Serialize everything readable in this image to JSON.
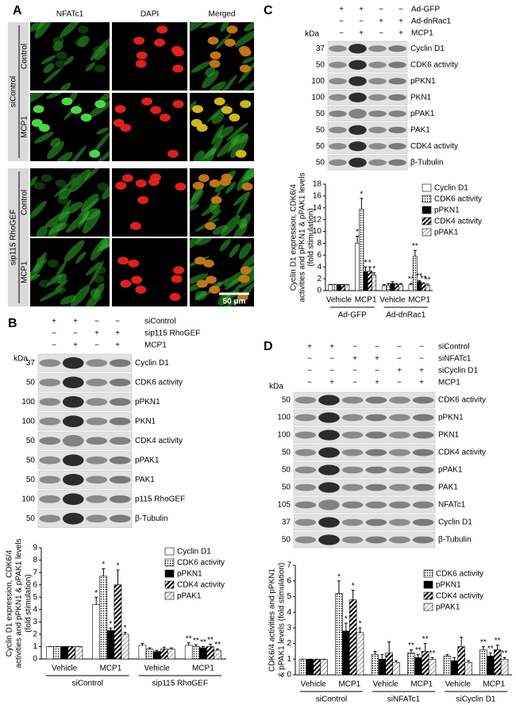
{
  "panels": {
    "A": {
      "label": "A",
      "columns": [
        "NFATc1",
        "DAPI",
        "Merged"
      ],
      "groups": [
        {
          "name": "siControl",
          "rows": [
            "Control",
            "MCP1"
          ]
        },
        {
          "name": "sip115 RhoGEF",
          "rows": [
            "Control",
            "MCP1"
          ]
        }
      ],
      "scale_bar": "50 μm"
    },
    "B": {
      "label": "B",
      "unit": "kDa",
      "conditions": [
        {
          "name": "siControl",
          "signs": [
            "+",
            "+",
            "−",
            "−"
          ]
        },
        {
          "name": "sip115 RhoGEF",
          "signs": [
            "−",
            "−",
            "+",
            "+"
          ]
        },
        {
          "name": "MCP1",
          "signs": [
            "−",
            "+",
            "−",
            "+"
          ]
        }
      ],
      "blots": [
        {
          "marker": "37",
          "name": "Cyclin D1"
        },
        {
          "marker": "50",
          "name": "CDK6 activity"
        },
        {
          "marker": "100",
          "name": "pPKN1"
        },
        {
          "marker": "100",
          "name": "PKN1"
        },
        {
          "marker": "50",
          "name": "CDK4 activity"
        },
        {
          "marker": "50",
          "name": "pPAK1"
        },
        {
          "marker": "50",
          "name": "PAK1"
        },
        {
          "marker": "100",
          "name": "p115 RhoGEF"
        },
        {
          "marker": "50",
          "name": "β-Tubulin"
        }
      ]
    },
    "C": {
      "label": "C",
      "unit": "kDa",
      "conditions": [
        {
          "name": "Ad-GFP",
          "signs": [
            "+",
            "+",
            "−",
            "−"
          ]
        },
        {
          "name": "Ad-dnRac1",
          "signs": [
            "−",
            "−",
            "+",
            "+"
          ]
        },
        {
          "name": "MCP1",
          "signs": [
            "−",
            "+",
            "−",
            "+"
          ]
        }
      ],
      "blots": [
        {
          "marker": "37",
          "name": "Cyclin D1"
        },
        {
          "marker": "50",
          "name": "CDK6 activity"
        },
        {
          "marker": "100",
          "name": "pPKN1"
        },
        {
          "marker": "100",
          "name": "PKN1"
        },
        {
          "marker": "50",
          "name": "pPAK1"
        },
        {
          "marker": "50",
          "name": "PAK1"
        },
        {
          "marker": "50",
          "name": "CDK4 activity"
        },
        {
          "marker": "50",
          "name": "β-Tubulin"
        }
      ]
    },
    "D": {
      "label": "D",
      "unit": "kDa",
      "conditions": [
        {
          "name": "siControl",
          "signs": [
            "+",
            "+",
            "−",
            "−",
            "−",
            "−"
          ]
        },
        {
          "name": "siNFATc1",
          "signs": [
            "−",
            "−",
            "+",
            "+",
            "−",
            "−"
          ]
        },
        {
          "name": "siCyclin D1",
          "signs": [
            "−",
            "−",
            "−",
            "−",
            "+",
            "+"
          ]
        },
        {
          "name": "MCP1",
          "signs": [
            "−",
            "+",
            "−",
            "+",
            "−",
            "+"
          ]
        }
      ],
      "blots": [
        {
          "marker": "50",
          "name": "CDK6 activity"
        },
        {
          "marker": "100",
          "name": "pPKN1"
        },
        {
          "marker": "100",
          "name": "PKN1"
        },
        {
          "marker": "50",
          "name": "CDK4 activity"
        },
        {
          "marker": "50",
          "name": "pPAK1"
        },
        {
          "marker": "50",
          "name": "PAK1"
        },
        {
          "marker": "105",
          "name": "NFATc1"
        },
        {
          "marker": "37",
          "name": "Cyclin D1"
        },
        {
          "marker": "50",
          "name": "β-Tubulin"
        }
      ]
    }
  },
  "chart_data": [
    {
      "type": "bar",
      "ylabel": [
        "Cyclin D1 expression, CDK6/4",
        "activities and pPKN1 & pPAK1 levels",
        "(fold stimulation)"
      ],
      "categories": [
        "Vehicle",
        "MCP1",
        "Vehicle",
        "MCP1"
      ],
      "groups": [
        "siControl",
        "sip115 RhoGEF"
      ],
      "ylim": [
        0,
        9
      ],
      "yticks": [
        0,
        1,
        2,
        3,
        4,
        5,
        6,
        7,
        8,
        9
      ],
      "legend": "upper right",
      "series": [
        {
          "name": "Cyclin D1",
          "color": "#ffffff",
          "pattern": "none",
          "values": [
            1,
            4.4,
            1.1,
            1.1
          ],
          "errors": [
            0,
            0.6,
            0.15,
            0.2
          ],
          "annotations": [
            null,
            "*",
            null,
            "**"
          ]
        },
        {
          "name": "CDK6 activity",
          "color": "#000000",
          "pattern": "dots",
          "values": [
            1,
            6.7,
            0.8,
            1.0
          ],
          "errors": [
            0,
            0.6,
            0.1,
            0.15
          ],
          "annotations": [
            null,
            "*",
            null,
            "**"
          ]
        },
        {
          "name": "pPKN1",
          "color": "#000000",
          "pattern": "none",
          "values": [
            1,
            2.3,
            0.6,
            0.9
          ],
          "errors": [
            0,
            0.2,
            0.1,
            0.1
          ],
          "annotations": [
            null,
            "*",
            null,
            "**"
          ]
        },
        {
          "name": "CDK4 activity",
          "color": "#000000",
          "pattern": "hatch",
          "values": [
            1,
            6.0,
            0.8,
            1.0
          ],
          "errors": [
            0,
            1.2,
            0.15,
            0.2
          ],
          "annotations": [
            null,
            "*",
            null,
            "**"
          ]
        },
        {
          "name": "pPAK1",
          "color": "#888888",
          "pattern": "light-hatch",
          "values": [
            1,
            2.0,
            0.8,
            0.7
          ],
          "errors": [
            0,
            0.15,
            0.1,
            0.1
          ],
          "annotations": [
            null,
            "*",
            null,
            "**"
          ]
        }
      ]
    },
    {
      "type": "bar",
      "ylabel": [
        "Cyclin D1 expression, CDK6/4",
        "activities and pPKN1 & pPAK1 levels",
        "(fold stimulation)"
      ],
      "categories": [
        "Vehicle",
        "MCP1",
        "Vehicle",
        "MCP1"
      ],
      "groups": [
        "Ad-GFP",
        "Ad-dnRac1"
      ],
      "ylim": [
        0,
        18
      ],
      "yticks": [
        0,
        2,
        4,
        6,
        8,
        10,
        12,
        14,
        16,
        18
      ],
      "legend": "upper right",
      "series": [
        {
          "name": "Cyclin D1",
          "color": "#ffffff",
          "pattern": "none",
          "values": [
            1,
            8.0,
            0.8,
            1.0
          ],
          "errors": [
            0,
            1.2,
            0.2,
            0.2
          ],
          "annotations": [
            null,
            "*",
            null,
            "**"
          ]
        },
        {
          "name": "CDK6 activity",
          "color": "#000000",
          "pattern": "dots",
          "values": [
            1,
            13.8,
            0.9,
            5.8
          ],
          "errors": [
            0,
            1.8,
            0.3,
            1.0
          ],
          "annotations": [
            null,
            "*",
            null,
            "**"
          ]
        },
        {
          "name": "pPKN1",
          "color": "#000000",
          "pattern": "none",
          "values": [
            1,
            3.2,
            1.2,
            1.5
          ],
          "errors": [
            0,
            0.8,
            0.3,
            0.2
          ],
          "annotations": [
            null,
            "*",
            null,
            "**"
          ]
        },
        {
          "name": "CDK4 activity",
          "color": "#000000",
          "pattern": "hatch",
          "values": [
            1,
            3.3,
            1.0,
            1.1
          ],
          "errors": [
            0,
            0.7,
            0.2,
            0.2
          ],
          "annotations": [
            null,
            "*",
            null,
            "**"
          ]
        },
        {
          "name": "pPAK1",
          "color": "#888888",
          "pattern": "light-hatch",
          "values": [
            1,
            2.6,
            1.0,
            0.9
          ],
          "errors": [
            0,
            0.4,
            0.2,
            0.2
          ],
          "annotations": [
            null,
            "*",
            null,
            "**"
          ]
        }
      ]
    },
    {
      "type": "bar",
      "ylabel": [
        "CDK6/4 activities and pPKN1",
        "& pPAK1 levels (fold stimulation)"
      ],
      "categories": [
        "Vehicle",
        "MCP1",
        "Vehicle",
        "MCP1",
        "Vehicle",
        "MCP1"
      ],
      "groups": [
        "siControl",
        "siNFATc1",
        "siCyclin D1"
      ],
      "ylim": [
        0,
        7
      ],
      "yticks": [
        0,
        1,
        2,
        3,
        4,
        5,
        6,
        7
      ],
      "legend": "upper right",
      "series": [
        {
          "name": "CDK6 activity",
          "color": "#000000",
          "pattern": "dots",
          "values": [
            1,
            5.2,
            1.3,
            1.4,
            1.2,
            1.6
          ],
          "errors": [
            0,
            0.8,
            0.2,
            0.2,
            0.1,
            0.2
          ],
          "annotations": [
            null,
            "*",
            null,
            "**",
            null,
            "**"
          ]
        },
        {
          "name": "pPKN1",
          "color": "#000000",
          "pattern": "none",
          "values": [
            1,
            2.8,
            1.0,
            1.1,
            0.9,
            1.2
          ],
          "errors": [
            0,
            0.5,
            0.3,
            0.2,
            0.2,
            0.2
          ],
          "annotations": [
            null,
            "*",
            null,
            "**",
            null,
            "**"
          ]
        },
        {
          "name": "CDK4 activity",
          "color": "#000000",
          "pattern": "hatch",
          "values": [
            1,
            4.8,
            1.4,
            1.5,
            1.8,
            1.6
          ],
          "errors": [
            0,
            0.6,
            0.7,
            0.5,
            0.6,
            0.3
          ],
          "annotations": [
            null,
            "*",
            null,
            "**",
            null,
            "**"
          ]
        },
        {
          "name": "pPAK1",
          "color": "#888888",
          "pattern": "light-hatch",
          "values": [
            1,
            2.7,
            0.8,
            1.0,
            0.8,
            1.0
          ],
          "errors": [
            0,
            0.3,
            0.1,
            0.1,
            0.1,
            0.1
          ],
          "annotations": [
            null,
            "*",
            null,
            "**",
            null,
            "**"
          ]
        }
      ]
    }
  ]
}
